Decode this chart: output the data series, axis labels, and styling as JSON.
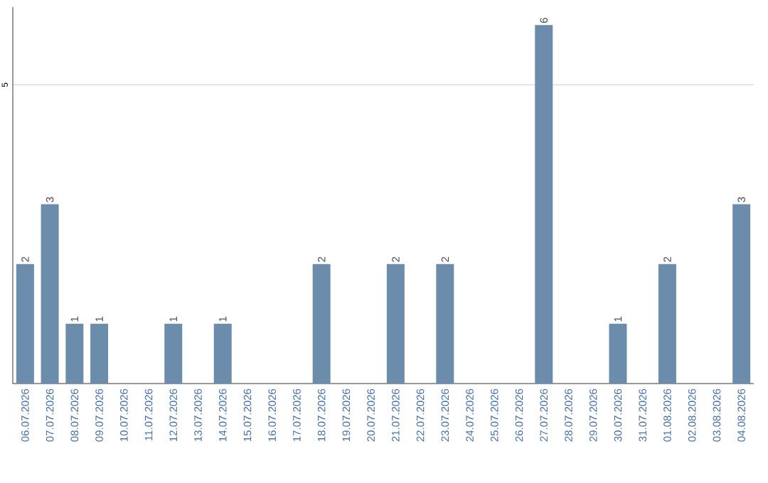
{
  "chart_data": {
    "type": "bar",
    "categories": [
      "06.07.2026",
      "07.07.2026",
      "08.07.2026",
      "09.07.2026",
      "10.07.2026",
      "11.07.2026",
      "12.07.2026",
      "13.07.2026",
      "14.07.2026",
      "15.07.2026",
      "16.07.2026",
      "17.07.2026",
      "18.07.2026",
      "19.07.2026",
      "20.07.2026",
      "21.07.2026",
      "22.07.2026",
      "23.07.2026",
      "24.07.2026",
      "25.07.2026",
      "26.07.2026",
      "27.07.2026",
      "28.07.2026",
      "29.07.2026",
      "30.07.2026",
      "31.07.2026",
      "01.08.2026",
      "02.08.2026",
      "03.08.2026",
      "04.08.2026"
    ],
    "values": [
      2,
      3,
      1,
      1,
      0,
      0,
      1,
      0,
      1,
      0,
      0,
      0,
      2,
      0,
      0,
      2,
      0,
      2,
      0,
      0,
      0,
      6,
      0,
      0,
      1,
      0,
      2,
      0,
      0,
      3
    ],
    "value_labels": [
      "2",
      "3",
      "1",
      "1",
      null,
      null,
      "1",
      null,
      "1",
      null,
      null,
      null,
      "2",
      null,
      null,
      "2",
      null,
      "2",
      null,
      null,
      null,
      "6",
      null,
      null,
      "1",
      null,
      "2",
      null,
      null,
      "3"
    ],
    "color": "#6b8cab",
    "ylim": [
      0,
      6.3
    ],
    "yticks": [
      5
    ],
    "grid": "y"
  }
}
